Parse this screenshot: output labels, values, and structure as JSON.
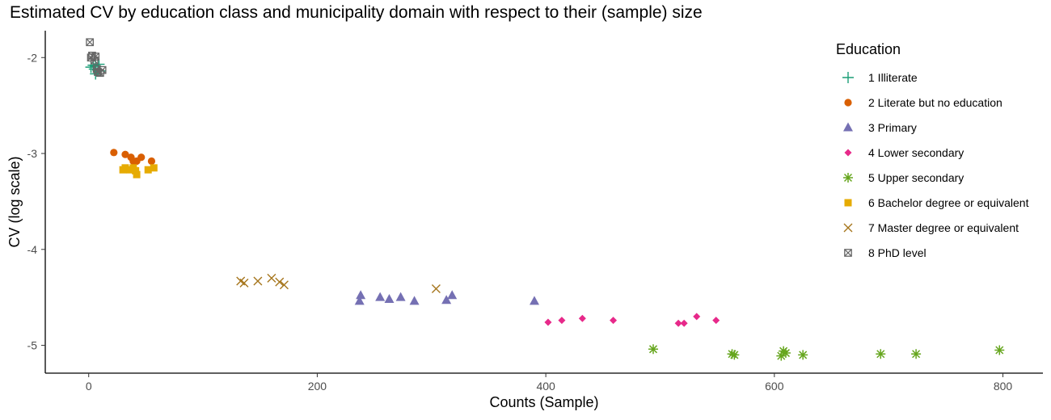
{
  "chart_data": {
    "type": "scatter",
    "title": "Estimated CV by education class and municipality domain with respect to their (sample) size",
    "xlabel": "Counts (Sample)",
    "ylabel": "CV (log scale)",
    "xlim": [
      -38,
      835
    ],
    "ylim": [
      -5.29,
      -1.72
    ],
    "x_ticks": [
      0,
      200,
      400,
      600,
      800
    ],
    "y_ticks": [
      -2,
      -3,
      -4,
      -5
    ],
    "grid": false,
    "legend": {
      "title": "Education",
      "position": "right"
    },
    "series": [
      {
        "name": "1 Illiterate",
        "shape": "plus",
        "color": "#1B9E77",
        "points": [
          [
            2,
            -2.1
          ],
          [
            4,
            -2.08
          ],
          [
            5,
            -2.12
          ],
          [
            6,
            -2.09
          ],
          [
            8,
            -2.13
          ],
          [
            9,
            -2.07
          ],
          [
            6,
            -2.17
          ],
          [
            10,
            -2.14
          ]
        ]
      },
      {
        "name": "2 Literate but no education",
        "shape": "circle",
        "color": "#D95F02",
        "points": [
          [
            22,
            -2.99
          ],
          [
            32,
            -3.01
          ],
          [
            37,
            -3.04
          ],
          [
            39,
            -3.08
          ],
          [
            42,
            -3.08
          ],
          [
            46,
            -3.04
          ],
          [
            55,
            -3.08
          ]
        ]
      },
      {
        "name": "3 Primary",
        "shape": "triangle",
        "color": "#7570B3",
        "points": [
          [
            237,
            -4.54
          ],
          [
            238,
            -4.48
          ],
          [
            255,
            -4.5
          ],
          [
            263,
            -4.52
          ],
          [
            273,
            -4.5
          ],
          [
            285,
            -4.54
          ],
          [
            313,
            -4.53
          ],
          [
            318,
            -4.48
          ],
          [
            390,
            -4.54
          ]
        ]
      },
      {
        "name": "4 Lower secondary",
        "shape": "diamond",
        "color": "#E7298A",
        "points": [
          [
            402,
            -4.76
          ],
          [
            414,
            -4.74
          ],
          [
            432,
            -4.72
          ],
          [
            459,
            -4.74
          ],
          [
            516,
            -4.77
          ],
          [
            521,
            -4.77
          ],
          [
            532,
            -4.7
          ],
          [
            549,
            -4.74
          ]
        ]
      },
      {
        "name": "5 Upper secondary",
        "shape": "asterisk",
        "color": "#66A61E",
        "points": [
          [
            494,
            -5.04
          ],
          [
            563,
            -5.09
          ],
          [
            565,
            -5.1
          ],
          [
            606,
            -5.11
          ],
          [
            608,
            -5.06
          ],
          [
            610,
            -5.08
          ],
          [
            625,
            -5.1
          ],
          [
            693,
            -5.09
          ],
          [
            724,
            -5.09
          ],
          [
            797,
            -5.05
          ]
        ]
      },
      {
        "name": "6 Bachelor degree or equivalent",
        "shape": "square",
        "color": "#E6AB02",
        "points": [
          [
            30,
            -3.17
          ],
          [
            32,
            -3.15
          ],
          [
            36,
            -3.17
          ],
          [
            39,
            -3.15
          ],
          [
            41,
            -3.18
          ],
          [
            42,
            -3.22
          ],
          [
            52,
            -3.17
          ],
          [
            57,
            -3.15
          ]
        ]
      },
      {
        "name": "7 Master degree or equivalent",
        "shape": "cross",
        "color": "#A6761D",
        "points": [
          [
            133,
            -4.33
          ],
          [
            136,
            -4.35
          ],
          [
            148,
            -4.33
          ],
          [
            160,
            -4.3
          ],
          [
            167,
            -4.34
          ],
          [
            171,
            -4.37
          ],
          [
            304,
            -4.41
          ]
        ]
      },
      {
        "name": "8 PhD level",
        "shape": "boxx",
        "color": "#666666",
        "points": [
          [
            1,
            -1.84
          ],
          [
            2,
            -2.0
          ],
          [
            3,
            -1.98
          ],
          [
            5,
            -2.03
          ],
          [
            6,
            -1.99
          ],
          [
            7,
            -2.12
          ],
          [
            8,
            -2.15
          ],
          [
            10,
            -2.16
          ],
          [
            12,
            -2.13
          ]
        ]
      }
    ]
  }
}
